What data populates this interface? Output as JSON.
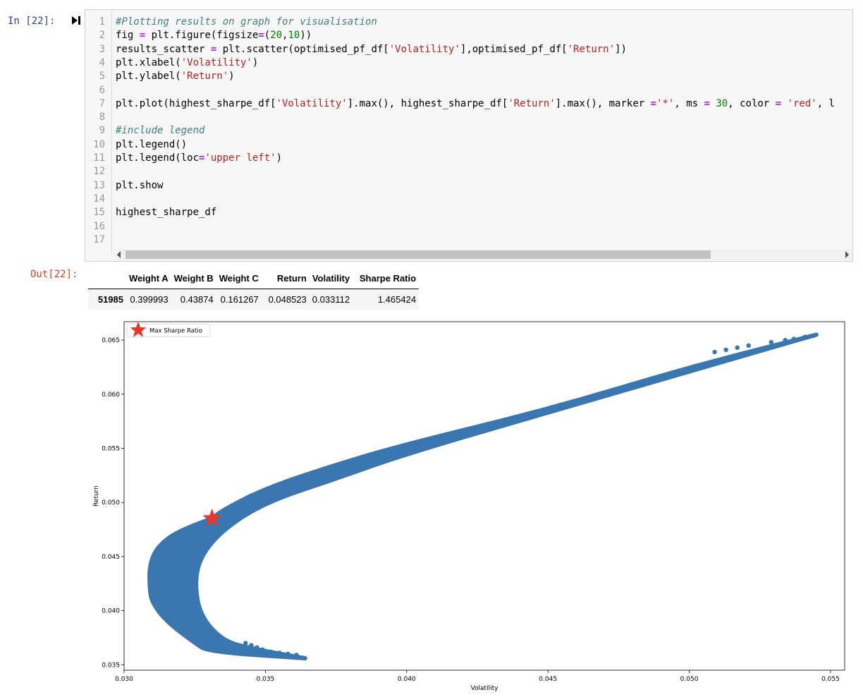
{
  "input_prompt": "In [22]:",
  "output_prompt": "Out[22]:",
  "code_lines": [
    {
      "n": "1",
      "parts": [
        {
          "t": "#Plotting results on graph for visualisation",
          "c": "cm"
        }
      ]
    },
    {
      "n": "2",
      "parts": [
        {
          "t": "fig "
        },
        {
          "t": "=",
          "c": "op"
        },
        {
          "t": " plt.figure(figsize"
        },
        {
          "t": "=",
          "c": "op"
        },
        {
          "t": "("
        },
        {
          "t": "20",
          "c": "nu"
        },
        {
          "t": ","
        },
        {
          "t": "10",
          "c": "nu"
        },
        {
          "t": "))"
        }
      ]
    },
    {
      "n": "3",
      "parts": [
        {
          "t": "results_scatter "
        },
        {
          "t": "=",
          "c": "op"
        },
        {
          "t": " plt.scatter(optimised_pf_df["
        },
        {
          "t": "'Volatility'",
          "c": "st"
        },
        {
          "t": "],optimised_pf_df["
        },
        {
          "t": "'Return'",
          "c": "st"
        },
        {
          "t": "])"
        }
      ]
    },
    {
      "n": "4",
      "parts": [
        {
          "t": "plt.xlabel("
        },
        {
          "t": "'Volatility'",
          "c": "st"
        },
        {
          "t": ")"
        }
      ]
    },
    {
      "n": "5",
      "parts": [
        {
          "t": "plt.ylabel("
        },
        {
          "t": "'Return'",
          "c": "st"
        },
        {
          "t": ")"
        }
      ]
    },
    {
      "n": "6",
      "parts": []
    },
    {
      "n": "7",
      "parts": [
        {
          "t": "plt.plot(highest_sharpe_df["
        },
        {
          "t": "'Volatility'",
          "c": "st"
        },
        {
          "t": "].max(), highest_sharpe_df["
        },
        {
          "t": "'Return'",
          "c": "st"
        },
        {
          "t": "].max(), marker "
        },
        {
          "t": "=",
          "c": "op"
        },
        {
          "t": "'*'",
          "c": "st"
        },
        {
          "t": ", ms "
        },
        {
          "t": "=",
          "c": "op"
        },
        {
          "t": " "
        },
        {
          "t": "30",
          "c": "nu"
        },
        {
          "t": ", color "
        },
        {
          "t": "=",
          "c": "op"
        },
        {
          "t": " "
        },
        {
          "t": "'red'",
          "c": "st"
        },
        {
          "t": ", l"
        }
      ]
    },
    {
      "n": "8",
      "parts": []
    },
    {
      "n": "9",
      "parts": [
        {
          "t": "#include legend",
          "c": "cm"
        }
      ]
    },
    {
      "n": "10",
      "parts": [
        {
          "t": "plt.legend()"
        }
      ]
    },
    {
      "n": "11",
      "parts": [
        {
          "t": "plt.legend(loc"
        },
        {
          "t": "=",
          "c": "op"
        },
        {
          "t": "'upper left'",
          "c": "st"
        },
        {
          "t": ")"
        }
      ]
    },
    {
      "n": "12",
      "parts": []
    },
    {
      "n": "13",
      "parts": [
        {
          "t": "plt.show"
        }
      ]
    },
    {
      "n": "14",
      "parts": []
    },
    {
      "n": "15",
      "parts": [
        {
          "t": "highest_sharpe_df"
        }
      ]
    },
    {
      "n": "16",
      "parts": []
    },
    {
      "n": "17",
      "parts": []
    }
  ],
  "dataframe": {
    "columns": [
      "Weight A",
      "Weight B",
      "Weight C",
      "Return",
      "Volatility",
      "Sharpe Ratio"
    ],
    "rows": [
      {
        "index": "51985",
        "values": [
          "0.399993",
          "0.43874",
          "0.161267",
          "0.048523",
          "0.033112",
          "1.465424"
        ]
      }
    ]
  },
  "colors": {
    "scatter": "#3a76b0",
    "marker": "#e8372b",
    "axis": "#000000"
  },
  "chart_data": {
    "type": "scatter",
    "title": "",
    "xlabel": "Volatility",
    "ylabel": "Return",
    "xlim": [
      0.03,
      0.0555
    ],
    "ylim": [
      0.0345,
      0.0667
    ],
    "xticks": [
      "0.030",
      "0.035",
      "0.040",
      "0.045",
      "0.050",
      "0.055"
    ],
    "yticks": [
      "0.035",
      "0.040",
      "0.045",
      "0.050",
      "0.055",
      "0.060",
      "0.065"
    ],
    "grid": false,
    "legend": {
      "position": "upper left",
      "entries": [
        "Max Sharpe Ratio"
      ]
    },
    "series": [
      {
        "kind": "scatter-cloud",
        "upper_boundary": [
          [
            0.0331,
            0.0485
          ],
          [
            0.0335,
            0.0493
          ],
          [
            0.035,
            0.0513
          ],
          [
            0.0375,
            0.0535
          ],
          [
            0.04,
            0.0554
          ],
          [
            0.045,
            0.0586
          ],
          [
            0.05,
            0.0625
          ],
          [
            0.0545,
            0.0655
          ]
        ],
        "lower_boundary": [
          [
            0.0364,
            0.0356
          ],
          [
            0.0345,
            0.0365
          ],
          [
            0.0335,
            0.0372
          ],
          [
            0.0327,
            0.0395
          ],
          [
            0.0325,
            0.0425
          ],
          [
            0.0327,
            0.045
          ],
          [
            0.0335,
            0.0475
          ],
          [
            0.035,
            0.05
          ],
          [
            0.0375,
            0.0522
          ],
          [
            0.04,
            0.0545
          ],
          [
            0.045,
            0.0583
          ],
          [
            0.05,
            0.0621
          ],
          [
            0.0545,
            0.0655
          ]
        ],
        "left_boundary": [
          [
            0.0331,
            0.0485
          ],
          [
            0.032,
            0.0475
          ],
          [
            0.0312,
            0.046
          ],
          [
            0.0309,
            0.0443
          ],
          [
            0.0309,
            0.042
          ],
          [
            0.031,
            0.0407
          ],
          [
            0.0315,
            0.039
          ],
          [
            0.0325,
            0.037
          ],
          [
            0.033,
            0.0362
          ],
          [
            0.0364,
            0.0356
          ]
        ]
      },
      {
        "name": "Max Sharpe Ratio",
        "kind": "marker",
        "x": 0.033112,
        "y": 0.048523
      }
    ]
  }
}
